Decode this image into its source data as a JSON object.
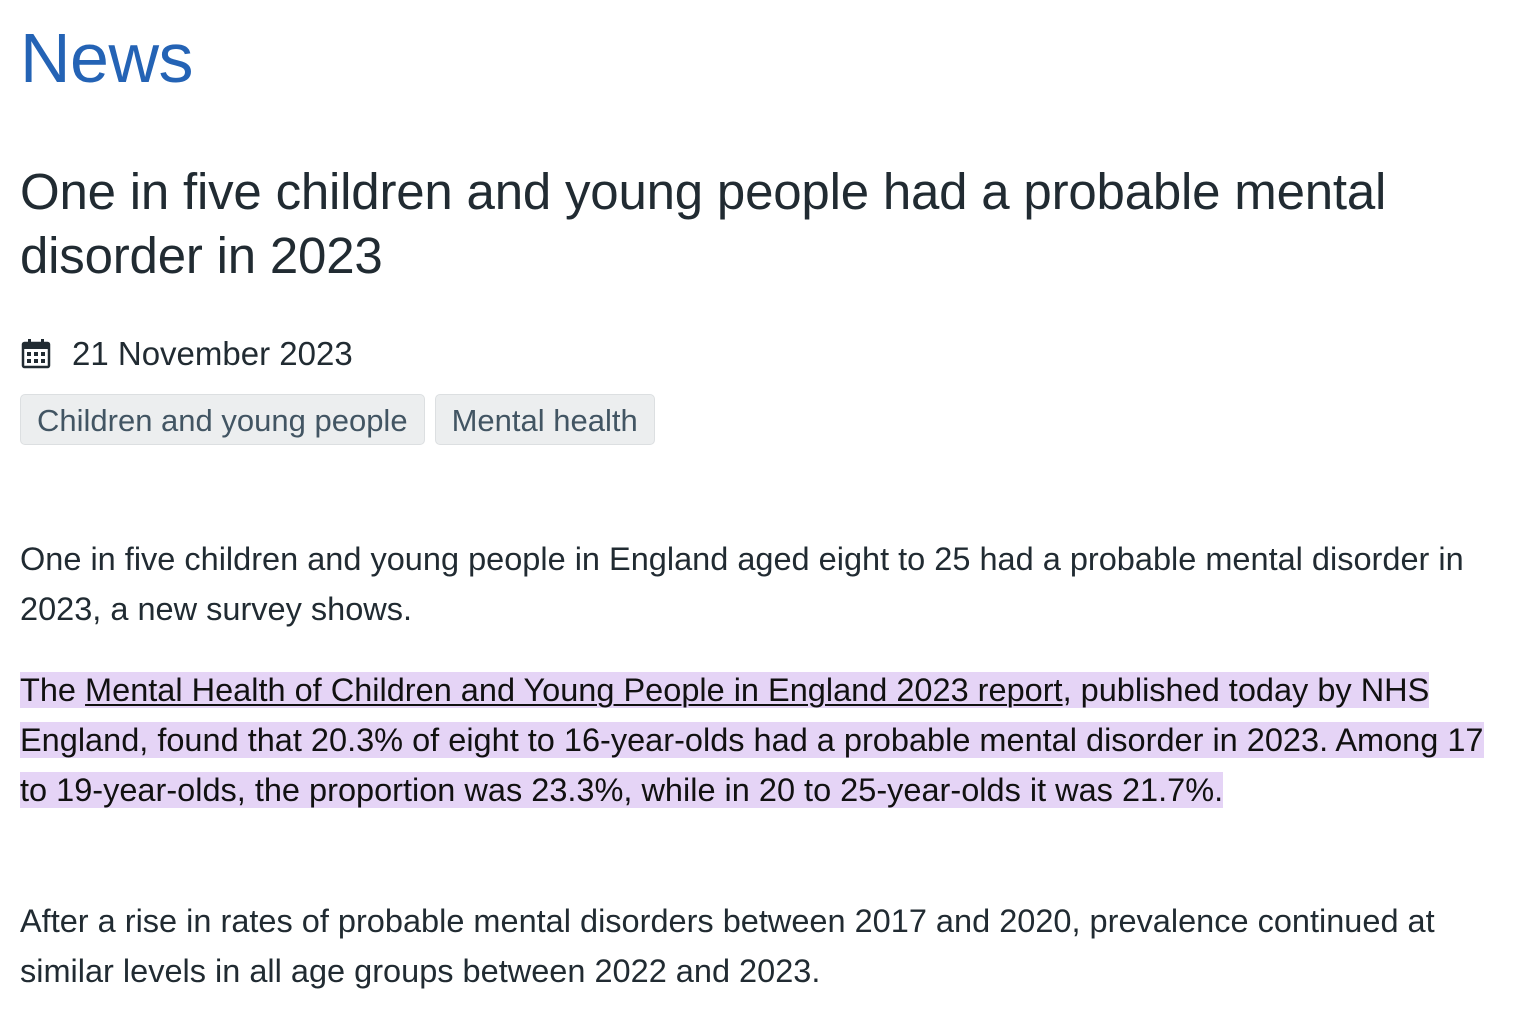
{
  "section": {
    "heading": "News"
  },
  "article": {
    "title": "One in five children and young people had a probable mental disorder in 2023",
    "date": "21 November 2023",
    "tags": [
      "Children and young people",
      "Mental health"
    ],
    "paragraph1": "One in five children and young people in England aged eight to 25 had a probable mental disorder in 2023, a new survey shows.",
    "paragraph2": {
      "prefix": "The ",
      "link_text": "Mental Health of Children and Young People in England 2023 report",
      "suffix": ", published today by NHS England, found that 20.3% of eight to 16-year-olds had a probable mental disorder in 2023. Among 17 to 19-year-olds, the proportion was 23.3%, while in 20 to 25-year-olds it was 21.7%."
    },
    "paragraph3": "After a rise in rates of probable mental disorders between 2017 and 2020, prevalence continued at similar levels in all age groups between 2022 and 2023."
  },
  "icons": {
    "date": "calendar-icon"
  },
  "colors": {
    "heading": "#2463b5",
    "text": "#212b32",
    "highlight": "#e5d4f6",
    "tag_background": "#eceeef"
  }
}
